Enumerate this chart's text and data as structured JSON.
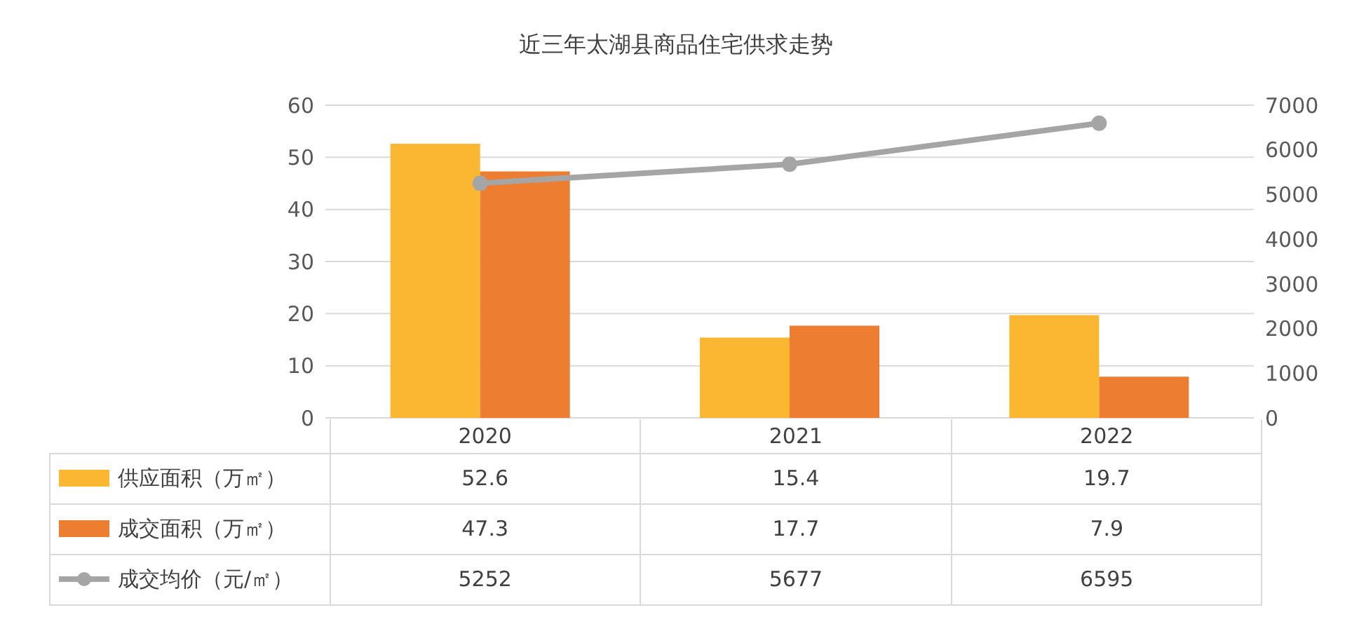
{
  "chart_data": {
    "type": "bar",
    "title": "近三年太湖县商品住宅供求走势",
    "categories": [
      "2020",
      "2021",
      "2022"
    ],
    "series": [
      {
        "name": "供应面积（万㎡）",
        "color": "#fbb732",
        "values": [
          52.6,
          15.4,
          19.7
        ]
      },
      {
        "name": "成交面积（万㎡）",
        "color": "#ed7d31",
        "values": [
          47.3,
          17.7,
          7.9
        ]
      },
      {
        "name": "成交均价（元/㎡）",
        "type": "line",
        "axis": "y2",
        "color": "#a5a5a5",
        "values": [
          5252,
          5677,
          6595
        ]
      }
    ],
    "ylim": [
      0,
      60
    ],
    "yticks": [
      0,
      10,
      20,
      30,
      40,
      50,
      60
    ],
    "y2lim": [
      0,
      7000
    ],
    "y2ticks": [
      0,
      1000,
      2000,
      3000,
      4000,
      5000,
      6000,
      7000
    ],
    "grid": "y",
    "legend": "bottom",
    "marker": "circle",
    "data_labels": true
  }
}
